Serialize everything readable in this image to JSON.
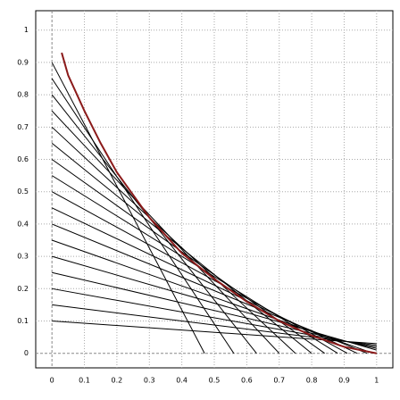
{
  "chart_data": {
    "type": "line",
    "xlim": [
      -0.05,
      1.05
    ],
    "ylim": [
      -0.045,
      1.06
    ],
    "xticks": [
      0,
      0.1,
      0.2,
      0.3,
      0.4,
      0.5,
      0.6,
      0.7,
      0.8,
      0.9,
      1
    ],
    "yticks": [
      0,
      0.1,
      0.2,
      0.3,
      0.4,
      0.5,
      0.6,
      0.7,
      0.8,
      0.9,
      1
    ],
    "grid": true,
    "series": [
      {
        "color": "#000000",
        "x": [
          0,
          0.47
        ],
        "values": [
          0.9,
          0
        ]
      },
      {
        "color": "#000000",
        "x": [
          0,
          0.56
        ],
        "values": [
          0.85,
          0
        ]
      },
      {
        "color": "#000000",
        "x": [
          0,
          0.63
        ],
        "values": [
          0.8,
          0
        ]
      },
      {
        "color": "#000000",
        "x": [
          0,
          0.7
        ],
        "values": [
          0.75,
          0
        ]
      },
      {
        "color": "#000000",
        "x": [
          0,
          0.75
        ],
        "values": [
          0.7,
          0
        ]
      },
      {
        "color": "#000000",
        "x": [
          0,
          0.8
        ],
        "values": [
          0.65,
          0
        ]
      },
      {
        "color": "#000000",
        "x": [
          0,
          0.84
        ],
        "values": [
          0.6,
          0
        ]
      },
      {
        "color": "#000000",
        "x": [
          0,
          0.88
        ],
        "values": [
          0.55,
          0
        ]
      },
      {
        "color": "#000000",
        "x": [
          0,
          0.91
        ],
        "values": [
          0.5,
          0
        ]
      },
      {
        "color": "#000000",
        "x": [
          0,
          0.94
        ],
        "values": [
          0.45,
          0
        ]
      },
      {
        "color": "#000000",
        "x": [
          0,
          0.97
        ],
        "values": [
          0.4,
          0
        ]
      },
      {
        "color": "#000000",
        "x": [
          0,
          0.99
        ],
        "values": [
          0.35,
          0
        ]
      },
      {
        "color": "#000000",
        "x": [
          0,
          1
        ],
        "values": [
          0.3,
          0.01
        ]
      },
      {
        "color": "#000000",
        "x": [
          0,
          1
        ],
        "values": [
          0.25,
          0.015
        ]
      },
      {
        "color": "#000000",
        "x": [
          0,
          1
        ],
        "values": [
          0.2,
          0.02
        ]
      },
      {
        "color": "#000000",
        "x": [
          0,
          1
        ],
        "values": [
          0.15,
          0.025
        ]
      },
      {
        "color": "#000000",
        "x": [
          0,
          1
        ],
        "values": [
          0.1,
          0.03
        ]
      },
      {
        "color": "#8b1a1a",
        "width": 2,
        "x": [
          0.03,
          0.05,
          0.1,
          0.15,
          0.2,
          0.3,
          0.4,
          0.5,
          0.6,
          0.7,
          0.8,
          0.9,
          1
        ],
        "values": [
          0.93,
          0.86,
          0.75,
          0.65,
          0.56,
          0.42,
          0.31,
          0.23,
          0.16,
          0.1,
          0.055,
          0.02,
          0
        ]
      }
    ]
  }
}
